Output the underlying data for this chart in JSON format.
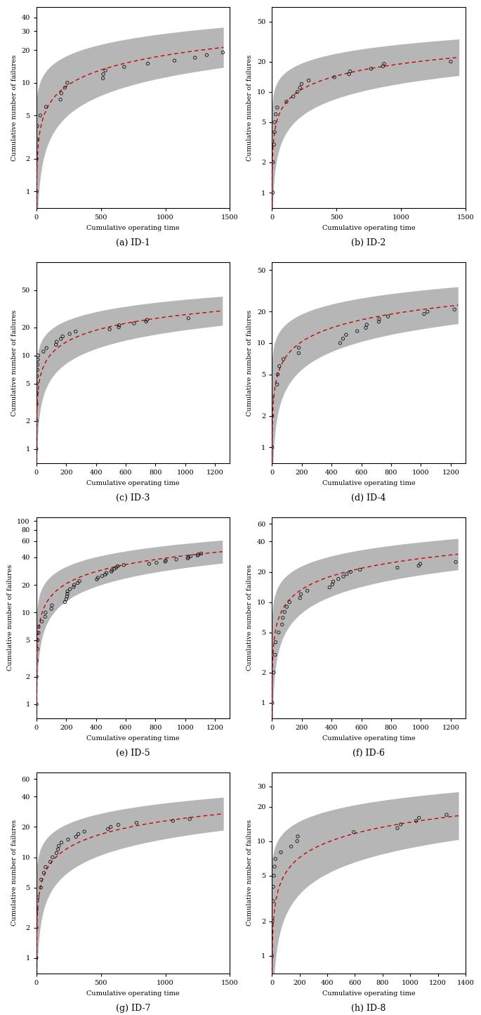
{
  "panels": [
    {
      "id": "ID-1",
      "label": "(a) ID-1",
      "xlim": [
        0,
        1500
      ],
      "xticks": [
        0,
        500,
        1000,
        1500
      ],
      "ylim": [
        0.7,
        50
      ],
      "yticks": [
        1,
        2,
        5,
        10,
        20,
        30,
        40
      ],
      "beta": 0.45,
      "lambda": 0.8,
      "max_time": 1450,
      "seed": 42
    },
    {
      "id": "ID-2",
      "label": "(b) ID-2",
      "xlim": [
        0,
        1500
      ],
      "xticks": [
        0,
        500,
        1000,
        1500
      ],
      "ylim": [
        0.7,
        70
      ],
      "yticks": [
        1,
        2,
        5,
        10,
        20,
        50
      ],
      "beta": 0.4,
      "lambda": 1.2,
      "max_time": 1450,
      "seed": 7
    },
    {
      "id": "ID-3",
      "label": "(c) ID-3",
      "xlim": [
        0,
        1300
      ],
      "xticks": [
        0,
        200,
        400,
        600,
        800,
        1000,
        1200
      ],
      "ylim": [
        0.7,
        100
      ],
      "yticks": [
        1,
        2,
        5,
        10,
        20,
        50
      ],
      "beta": 0.42,
      "lambda": 1.5,
      "max_time": 1250,
      "seed": 13
    },
    {
      "id": "ID-4",
      "label": "(d) ID-4",
      "xlim": [
        0,
        1300
      ],
      "xticks": [
        0,
        200,
        400,
        600,
        800,
        1000,
        1200
      ],
      "ylim": [
        0.7,
        60
      ],
      "yticks": [
        1,
        2,
        5,
        10,
        20,
        50
      ],
      "beta": 0.44,
      "lambda": 1.0,
      "max_time": 1250,
      "seed": 99
    },
    {
      "id": "ID-5",
      "label": "(e) ID-5",
      "xlim": [
        0,
        1300
      ],
      "xticks": [
        0,
        200,
        400,
        600,
        800,
        1000,
        1200
      ],
      "ylim": [
        0.7,
        110
      ],
      "yticks": [
        1,
        2,
        5,
        10,
        20,
        40,
        60,
        80,
        100
      ],
      "beta": 0.44,
      "lambda": 2.0,
      "max_time": 1250,
      "seed": 55
    },
    {
      "id": "ID-6",
      "label": "(f) ID-6",
      "xlim": [
        0,
        1300
      ],
      "xticks": [
        0,
        200,
        400,
        600,
        800,
        1000,
        1200
      ],
      "ylim": [
        0.7,
        70
      ],
      "yticks": [
        1,
        2,
        5,
        10,
        20,
        40,
        60
      ],
      "beta": 0.44,
      "lambda": 1.3,
      "max_time": 1250,
      "seed": 66
    },
    {
      "id": "ID-7",
      "label": "(g) ID-7",
      "xlim": [
        0,
        1500
      ],
      "xticks": [
        0,
        500,
        1000,
        1500
      ],
      "ylim": [
        0.7,
        70
      ],
      "yticks": [
        1,
        2,
        5,
        10,
        20,
        40,
        60
      ],
      "beta": 0.44,
      "lambda": 1.1,
      "max_time": 1450,
      "seed": 77
    },
    {
      "id": "ID-8",
      "label": "(h) ID-8",
      "xlim": [
        0,
        1400
      ],
      "xticks": [
        0,
        200,
        400,
        600,
        800,
        1000,
        1200,
        1400
      ],
      "ylim": [
        0.7,
        40
      ],
      "yticks": [
        1,
        2,
        5,
        10,
        20,
        30
      ],
      "beta": 0.44,
      "lambda": 0.7,
      "max_time": 1350,
      "seed": 88
    }
  ],
  "xlabel": "Cumulative operating time",
  "ylabel": "Cumulative number of failures",
  "curve_color": "#CC0000",
  "band_color": "#AAAAAA",
  "point_facecolor": "none",
  "point_edgecolor": "#111111",
  "background_color": "#FFFFFF"
}
